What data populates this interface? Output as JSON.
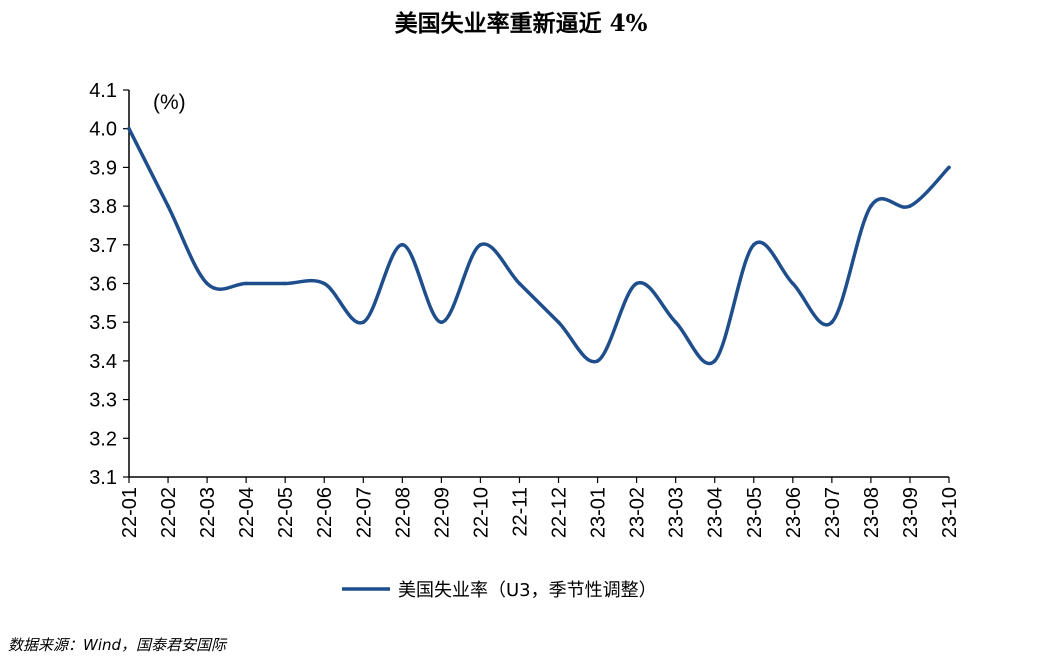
{
  "chart_data": {
    "type": "line",
    "title": "美国失业率重新逼近 4%",
    "unit_label": "(%)",
    "xlabel": "",
    "ylabel": "",
    "ylim": [
      3.1,
      4.1
    ],
    "y_ticks": [
      "4.1",
      "4.0",
      "3.9",
      "3.8",
      "3.7",
      "3.6",
      "3.5",
      "3.4",
      "3.3",
      "3.2",
      "3.1"
    ],
    "categories": [
      "22-01",
      "22-02",
      "22-03",
      "22-04",
      "22-05",
      "22-06",
      "22-07",
      "22-08",
      "22-09",
      "22-10",
      "22-11",
      "22-12",
      "23-01",
      "23-02",
      "23-03",
      "23-04",
      "23-05",
      "23-06",
      "23-07",
      "23-08",
      "23-09",
      "23-10"
    ],
    "series": [
      {
        "name": "美国失业率（U3，季节性调整）",
        "color": "#1f4e8c",
        "values": [
          4.0,
          3.8,
          3.6,
          3.6,
          3.6,
          3.6,
          3.5,
          3.7,
          3.5,
          3.7,
          3.6,
          3.5,
          3.4,
          3.6,
          3.5,
          3.4,
          3.7,
          3.6,
          3.5,
          3.8,
          3.8,
          3.9
        ]
      }
    ],
    "grid": false,
    "legend_position": "bottom-center"
  },
  "source": "数据来源：Wind，国泰君安国际"
}
